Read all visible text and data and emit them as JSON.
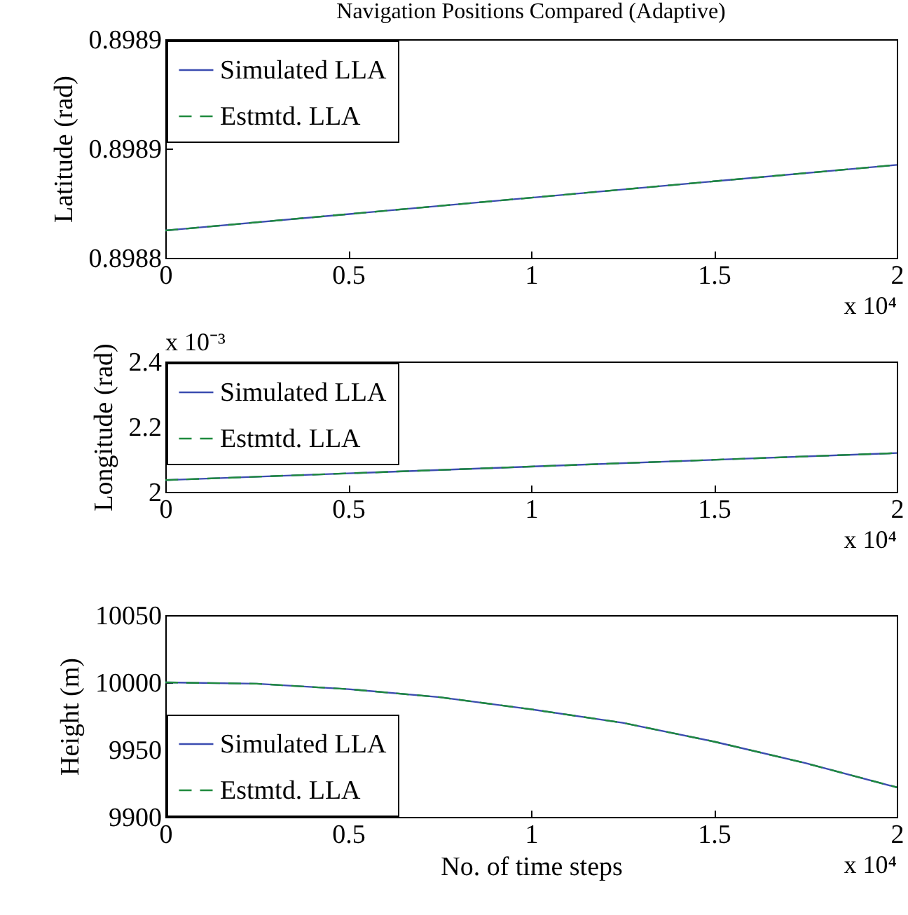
{
  "chart_data": [
    {
      "type": "line",
      "title": "Navigation Positions Compared (Adaptive)",
      "ylabel": "Latitude (rad)",
      "annotations": [
        "x 10⁴"
      ],
      "x": [
        0,
        2
      ],
      "xlim": [
        0,
        2
      ],
      "xticks": [
        0,
        0.5,
        1,
        1.5,
        2
      ],
      "ylim": [
        0.89884,
        0.89888
      ],
      "yticks": [
        {
          "value": 0.89884,
          "label": "0.8988"
        },
        {
          "value": 0.89886,
          "label": "0.8989"
        },
        {
          "value": 0.89888,
          "label": "0.8989"
        }
      ],
      "grid": false,
      "legend": "top left",
      "series": [
        {
          "name": "Simulated LLA",
          "color": "#3b4cb0",
          "line_style": "solid",
          "values": [
            0.898845,
            0.898857
          ]
        },
        {
          "name": "Estmtd. LLA",
          "color": "#1f8a3e",
          "line_style": "dashed",
          "values": [
            0.898845,
            0.898857
          ]
        }
      ]
    },
    {
      "type": "line",
      "ylabel": "Longitude (rad)",
      "annotations": [
        "x 10⁻³",
        "x 10⁴"
      ],
      "x": [
        0,
        2
      ],
      "xlim": [
        0,
        2
      ],
      "xticks": [
        0,
        0.5,
        1,
        1.5,
        2
      ],
      "ylim": [
        2,
        2.4
      ],
      "yticks": [
        2,
        2.2,
        2.4
      ],
      "grid": false,
      "legend": "top left",
      "series": [
        {
          "name": "Simulated LLA",
          "color": "#3b4cb0",
          "line_style": "solid",
          "values": [
            2.036,
            2.119
          ]
        },
        {
          "name": "Estmtd. LLA",
          "color": "#1f8a3e",
          "line_style": "dashed",
          "values": [
            2.036,
            2.119
          ]
        }
      ]
    },
    {
      "type": "line",
      "xlabel": "No. of time steps",
      "ylabel": "Height (m)",
      "annotations": [
        "x 10⁴"
      ],
      "x": [
        0,
        0.25,
        0.5,
        0.75,
        1,
        1.25,
        1.5,
        1.75,
        2
      ],
      "xlim": [
        0,
        2
      ],
      "xticks": [
        0,
        0.5,
        1,
        1.5,
        2
      ],
      "ylim": [
        9900,
        10050
      ],
      "yticks": [
        9900,
        9950,
        10000,
        10050
      ],
      "grid": false,
      "legend": "bottom left",
      "series": [
        {
          "name": "Simulated LLA",
          "color": "#3b4cb0",
          "line_style": "solid",
          "values": [
            10000,
            9999,
            9995,
            9989,
            9980,
            9970,
            9956,
            9940,
            9922
          ]
        },
        {
          "name": "Estmtd. LLA",
          "color": "#1f8a3e",
          "line_style": "dashed",
          "values": [
            10000,
            9999,
            9995,
            9989,
            9980,
            9970,
            9956,
            9940,
            9922
          ]
        }
      ]
    }
  ]
}
